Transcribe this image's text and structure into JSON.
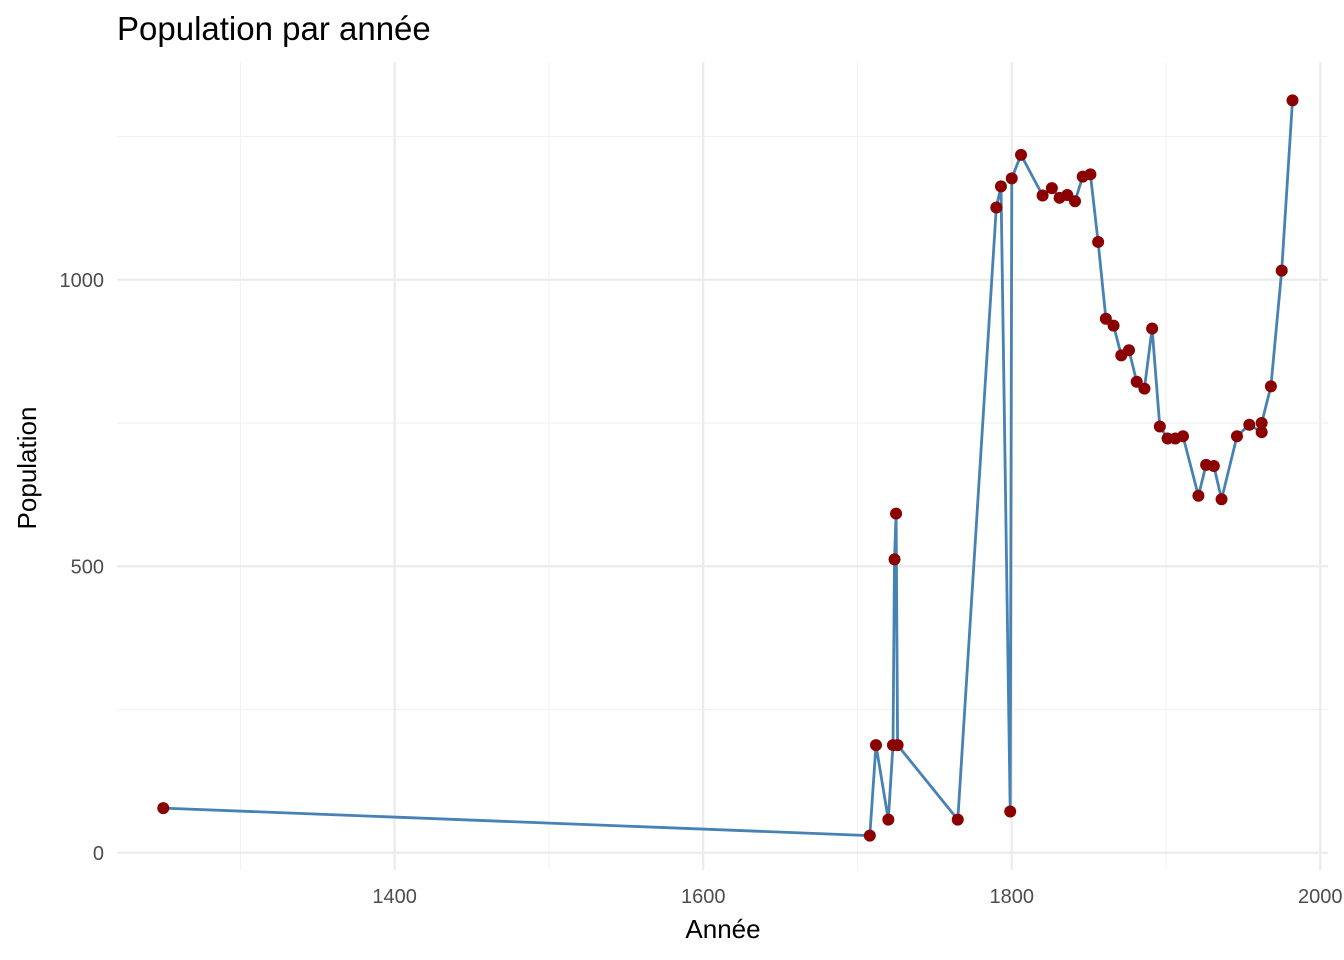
{
  "chart_data": {
    "type": "line",
    "title": "Population par année",
    "xlabel": "Année",
    "ylabel": "Population",
    "xlim": [
      1220,
      2005
    ],
    "ylim": [
      -30,
      1380
    ],
    "x_ticks": [
      1400,
      1600,
      1800,
      2000
    ],
    "x_minor_ticks": [
      1300,
      1500,
      1700,
      1900
    ],
    "y_ticks": [
      0,
      500,
      1000
    ],
    "y_minor_ticks": [
      250,
      750,
      1250
    ],
    "grid": true,
    "legend": "none",
    "line_color": "#4682b4",
    "point_color": "#8b0000",
    "series": [
      {
        "x": [
          1250,
          1708,
          1712,
          1720,
          1723,
          1724,
          1725,
          1726,
          1765,
          1790,
          1793,
          1799,
          1800,
          1806,
          1820,
          1826,
          1831,
          1836,
          1841,
          1846,
          1851,
          1856,
          1861,
          1866,
          1871,
          1876,
          1881,
          1886,
          1891,
          1896,
          1901,
          1906,
          1911,
          1921,
          1926,
          1931,
          1936,
          1946,
          1954,
          1962,
          1962,
          1968,
          1975,
          1982
        ],
        "y": [
          78,
          30,
          188,
          58,
          188,
          512,
          592,
          188,
          58,
          1126,
          1163,
          72,
          1177,
          1218,
          1147,
          1160,
          1143,
          1148,
          1137,
          1180,
          1184,
          1066,
          932,
          920,
          868,
          877,
          822,
          810,
          915,
          744,
          723,
          723,
          727,
          623,
          677,
          675,
          617,
          727,
          747,
          734,
          750,
          814,
          1016,
          1313
        ]
      }
    ]
  }
}
